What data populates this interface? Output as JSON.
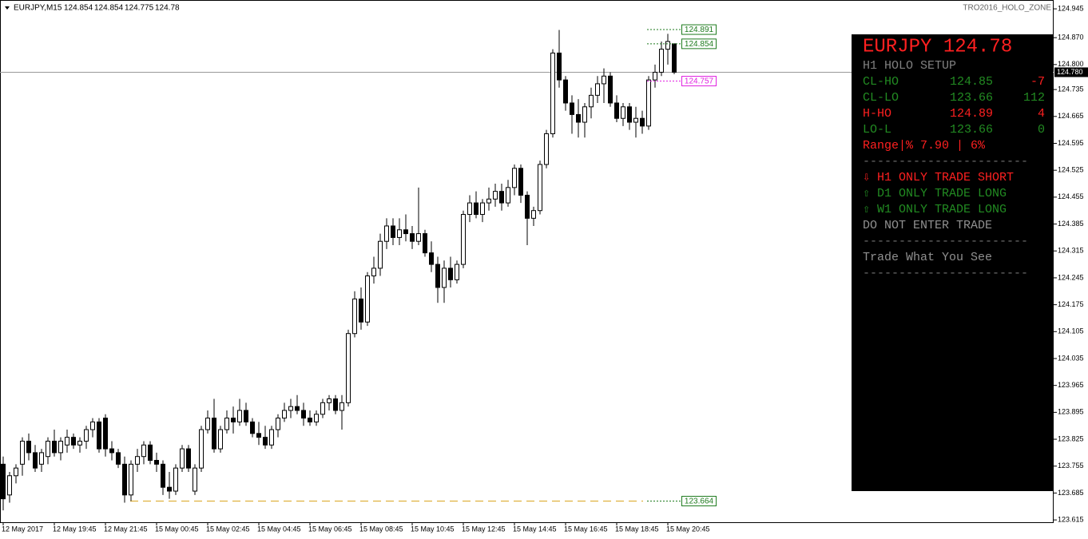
{
  "chart_data": {
    "type": "candlestick",
    "symbol": "EURJPY,M15",
    "header_values": [
      124.854,
      124.854,
      124.775,
      124.78
    ],
    "indicator_name": "TRO2016_HOLO_ZONE",
    "bull_color": "#ffffff",
    "bear_color": "#000000",
    "ylim": [
      123.609,
      124.968
    ],
    "yticks": [
      124.945,
      {
        "value": 124.87,
        "label": "124.870"
      },
      {
        "value": 124.8,
        "label": "124.800"
      },
      124.735,
      124.665,
      124.595,
      124.525,
      124.455,
      124.385,
      124.315,
      124.245,
      124.175,
      124.105,
      124.035,
      123.965,
      123.895,
      123.825,
      123.755,
      123.685,
      123.615
    ],
    "xticks": [
      {
        "value": 0,
        "label": "12 May 2017"
      },
      {
        "value": 8,
        "label": "12 May 19:45"
      },
      {
        "value": 16,
        "label": "12 May 21:45"
      },
      {
        "value": 24,
        "label": "15 May 00:45"
      },
      {
        "value": 32,
        "label": "15 May 02:45"
      },
      {
        "value": 40,
        "label": "15 May 04:45"
      },
      {
        "value": 48,
        "label": "15 May 06:45"
      },
      {
        "value": 56,
        "label": "15 May 08:45"
      },
      {
        "value": 64,
        "label": "15 May 10:45"
      },
      {
        "value": 72,
        "label": "15 May 12:45"
      },
      {
        "value": 80,
        "label": "15 May 14:45"
      },
      {
        "value": 88,
        "label": "15 May 16:45"
      },
      {
        "value": 96,
        "label": "15 May 18:45"
      },
      {
        "value": 104,
        "label": "15 May 20:45"
      }
    ],
    "current_price": {
      "value": 124.78,
      "label": "124.780"
    },
    "levels": [
      {
        "value": 124.891,
        "color": "#1e7b1e"
      },
      {
        "value": 124.854,
        "color": "#1e7b1e"
      },
      {
        "value": 124.757,
        "color": "#e020e0"
      },
      {
        "value": 123.664,
        "color": "#1e7b1e"
      }
    ],
    "support_line": {
      "value": 123.664,
      "color": "#daa520"
    },
    "ohlc": [
      [
        123.76,
        123.78,
        123.64,
        123.67
      ],
      [
        123.68,
        123.74,
        123.66,
        123.73
      ],
      [
        123.73,
        123.76,
        123.71,
        123.75
      ],
      [
        123.76,
        123.83,
        123.73,
        123.82
      ],
      [
        123.82,
        123.84,
        123.77,
        123.79
      ],
      [
        123.79,
        123.81,
        123.74,
        123.75
      ],
      [
        123.76,
        123.8,
        123.74,
        123.79
      ],
      [
        123.78,
        123.83,
        123.76,
        123.82
      ],
      [
        123.82,
        123.85,
        123.78,
        123.79
      ],
      [
        123.79,
        123.83,
        123.77,
        123.82
      ],
      [
        123.81,
        123.85,
        123.79,
        123.83
      ],
      [
        123.83,
        123.84,
        123.8,
        123.81
      ],
      [
        123.81,
        123.83,
        123.79,
        123.82
      ],
      [
        123.82,
        123.86,
        123.8,
        123.85
      ],
      [
        123.85,
        123.88,
        123.83,
        123.87
      ],
      [
        123.87,
        123.88,
        123.79,
        123.8
      ],
      [
        123.88,
        123.89,
        123.78,
        123.8
      ],
      [
        123.8,
        123.82,
        123.77,
        123.79
      ],
      [
        123.79,
        123.8,
        123.75,
        123.76
      ],
      [
        123.76,
        123.78,
        123.66,
        123.68
      ],
      [
        123.68,
        123.77,
        123.664,
        123.76
      ],
      [
        123.76,
        123.8,
        123.74,
        123.78
      ],
      [
        123.78,
        123.82,
        123.76,
        123.81
      ],
      [
        123.81,
        123.82,
        123.76,
        123.77
      ],
      [
        123.77,
        123.79,
        123.74,
        123.76
      ],
      [
        123.76,
        123.77,
        123.68,
        123.7
      ],
      [
        123.7,
        123.74,
        123.67,
        123.69
      ],
      [
        123.69,
        123.76,
        123.68,
        123.75
      ],
      [
        123.75,
        123.81,
        123.74,
        123.8
      ],
      [
        123.8,
        123.81,
        123.74,
        123.75
      ],
      [
        123.69,
        123.76,
        123.68,
        123.75
      ],
      [
        123.75,
        123.86,
        123.74,
        123.85
      ],
      [
        123.85,
        123.9,
        123.84,
        123.88
      ],
      [
        123.88,
        123.93,
        123.79,
        123.8
      ],
      [
        123.8,
        123.86,
        123.79,
        123.85
      ],
      [
        123.85,
        123.9,
        123.84,
        123.88
      ],
      [
        123.88,
        123.91,
        123.84,
        123.87
      ],
      [
        123.87,
        123.93,
        123.86,
        123.9
      ],
      [
        123.9,
        123.92,
        123.86,
        123.87
      ],
      [
        123.87,
        123.88,
        123.83,
        123.84
      ],
      [
        123.84,
        123.87,
        123.81,
        123.83
      ],
      [
        123.83,
        123.86,
        123.8,
        123.81
      ],
      [
        123.81,
        123.86,
        123.8,
        123.85
      ],
      [
        123.85,
        123.89,
        123.83,
        123.88
      ],
      [
        123.88,
        123.92,
        123.87,
        123.9
      ],
      [
        123.9,
        123.93,
        123.88,
        123.91
      ],
      [
        123.91,
        123.94,
        123.89,
        123.9
      ],
      [
        123.9,
        123.92,
        123.86,
        123.88
      ],
      [
        123.88,
        123.9,
        123.86,
        123.87
      ],
      [
        123.87,
        123.9,
        123.86,
        123.89
      ],
      [
        123.89,
        123.93,
        123.88,
        123.92
      ],
      [
        123.92,
        123.94,
        123.9,
        123.93
      ],
      [
        123.93,
        123.94,
        123.89,
        123.9
      ],
      [
        123.9,
        123.94,
        123.85,
        123.92
      ],
      [
        123.92,
        124.11,
        123.91,
        124.1
      ],
      [
        124.1,
        124.21,
        124.09,
        124.19
      ],
      [
        124.19,
        124.22,
        124.11,
        124.13
      ],
      [
        124.13,
        124.26,
        124.12,
        124.25
      ],
      [
        124.25,
        124.3,
        124.23,
        124.27
      ],
      [
        124.27,
        124.36,
        124.25,
        124.34
      ],
      [
        124.34,
        124.4,
        124.32,
        124.38
      ],
      [
        124.38,
        124.4,
        124.33,
        124.35
      ],
      [
        124.35,
        124.4,
        124.33,
        124.37
      ],
      [
        124.37,
        124.41,
        124.34,
        124.36
      ],
      [
        124.36,
        124.38,
        124.32,
        124.34
      ],
      [
        124.34,
        124.48,
        124.33,
        124.36
      ],
      [
        124.36,
        124.37,
        124.3,
        124.31
      ],
      [
        124.31,
        124.34,
        124.26,
        124.28
      ],
      [
        124.28,
        124.3,
        124.18,
        124.22
      ],
      [
        124.22,
        124.29,
        124.18,
        124.27
      ],
      [
        124.27,
        124.3,
        124.22,
        124.24
      ],
      [
        124.24,
        124.29,
        124.23,
        124.28
      ],
      [
        124.28,
        124.42,
        124.27,
        124.41
      ],
      [
        124.41,
        124.46,
        124.39,
        124.44
      ],
      [
        124.44,
        124.47,
        124.4,
        124.41
      ],
      [
        124.41,
        124.45,
        124.39,
        124.44
      ],
      [
        124.44,
        124.48,
        124.42,
        124.45
      ],
      [
        124.45,
        124.49,
        124.43,
        124.47
      ],
      [
        124.47,
        124.49,
        124.42,
        124.44
      ],
      [
        124.44,
        124.5,
        124.43,
        124.48
      ],
      [
        124.48,
        124.54,
        124.46,
        124.53
      ],
      [
        124.53,
        124.54,
        124.44,
        124.46
      ],
      [
        124.46,
        124.47,
        124.33,
        124.4
      ],
      [
        124.4,
        124.43,
        124.38,
        124.42
      ],
      [
        124.42,
        124.55,
        124.41,
        124.54
      ],
      [
        124.54,
        124.63,
        124.53,
        124.62
      ],
      [
        124.62,
        124.84,
        124.61,
        124.83
      ],
      [
        124.83,
        124.89,
        124.74,
        124.76
      ],
      [
        124.76,
        124.77,
        124.68,
        124.7
      ],
      [
        124.7,
        124.72,
        124.62,
        124.67
      ],
      [
        124.67,
        124.71,
        124.61,
        124.65
      ],
      [
        124.65,
        124.7,
        124.61,
        124.69
      ],
      [
        124.69,
        124.74,
        124.66,
        124.72
      ],
      [
        124.72,
        124.77,
        124.7,
        124.75
      ],
      [
        124.75,
        124.79,
        124.7,
        124.77
      ],
      [
        124.77,
        124.78,
        124.69,
        124.7
      ],
      [
        124.7,
        124.72,
        124.65,
        124.66
      ],
      [
        124.66,
        124.7,
        124.64,
        124.69
      ],
      [
        124.69,
        124.7,
        124.63,
        124.65
      ],
      [
        124.65,
        124.69,
        124.61,
        124.66
      ],
      [
        124.66,
        124.68,
        124.62,
        124.64
      ],
      [
        124.64,
        124.77,
        124.63,
        124.76
      ],
      [
        124.76,
        124.8,
        124.74,
        124.78
      ],
      [
        124.78,
        124.86,
        124.77,
        124.84
      ],
      [
        124.84,
        124.88,
        124.8,
        124.86
      ],
      [
        124.854,
        124.854,
        124.775,
        124.78
      ]
    ],
    "panel": {
      "title": "EURJPY 124.78",
      "title_color": "#ff2020",
      "subtitle": "H1 HOLO SETUP",
      "rows": [
        {
          "cells": [
            "CL-HO",
            "124.85",
            "-7"
          ],
          "colors": [
            "#228b22",
            "#228b22",
            "#ff2020"
          ]
        },
        {
          "cells": [
            "CL-LO",
            "123.66",
            "112"
          ],
          "colors": [
            "#228b22",
            "#228b22",
            "#228b22"
          ]
        },
        {
          "cells": [
            "H-HO",
            "124.89",
            "4"
          ],
          "colors": [
            "#ff2020",
            "#ff2020",
            "#ff2020"
          ]
        },
        {
          "cells": [
            "LO-L",
            "123.66",
            "0"
          ],
          "colors": [
            "#228b22",
            "#228b22",
            "#228b22"
          ]
        }
      ],
      "lines": [
        {
          "text": "Range|% 7.90 | 6%",
          "color": "#ff2020"
        },
        {
          "text": "-----------------------",
          "color": "#707070"
        },
        {
          "text": "⇩ H1 ONLY TRADE SHORT",
          "color": "#ff2020"
        },
        {
          "text": "⇧ D1 ONLY TRADE LONG",
          "color": "#228b22"
        },
        {
          "text": "⇧ W1 ONLY TRADE LONG",
          "color": "#228b22"
        },
        {
          "text": "DO NOT ENTER TRADE",
          "color": "#909090"
        },
        {
          "text": "-----------------------",
          "color": "#707070"
        },
        {
          "text": "Trade What You See",
          "color": "#909090"
        },
        {
          "text": "-----------------------",
          "color": "#707070"
        }
      ]
    }
  }
}
